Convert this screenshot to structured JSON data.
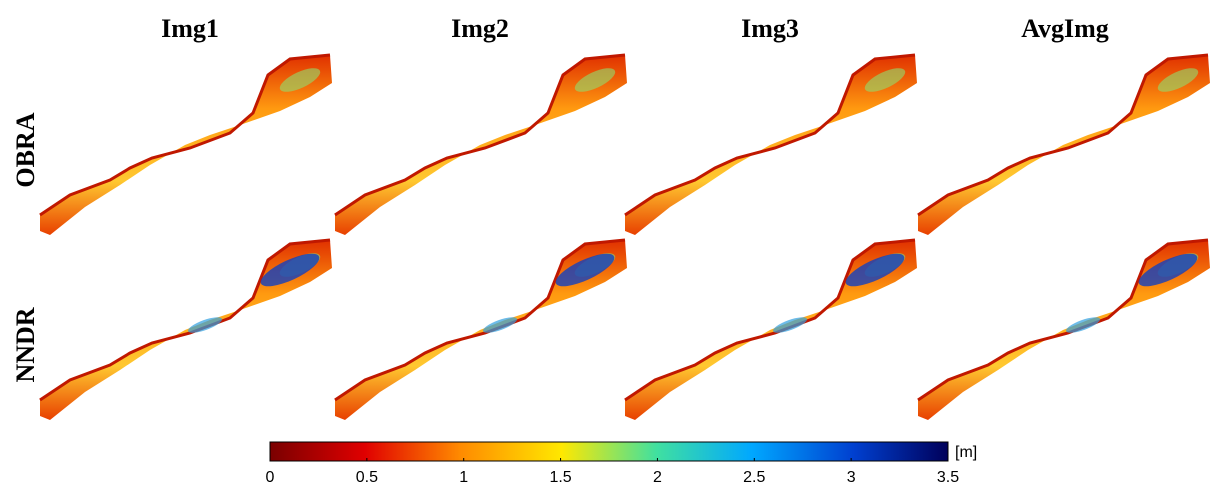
{
  "columns": [
    "Img1",
    "Img2",
    "Img3",
    "AvgImg"
  ],
  "rows": [
    "OBRA",
    "NNDR"
  ],
  "colorbar": {
    "unit": "[m]",
    "range": [
      0,
      3.5
    ],
    "ticks": [
      0,
      0.5,
      1,
      1.5,
      2,
      2.5,
      3,
      3.5
    ]
  }
}
